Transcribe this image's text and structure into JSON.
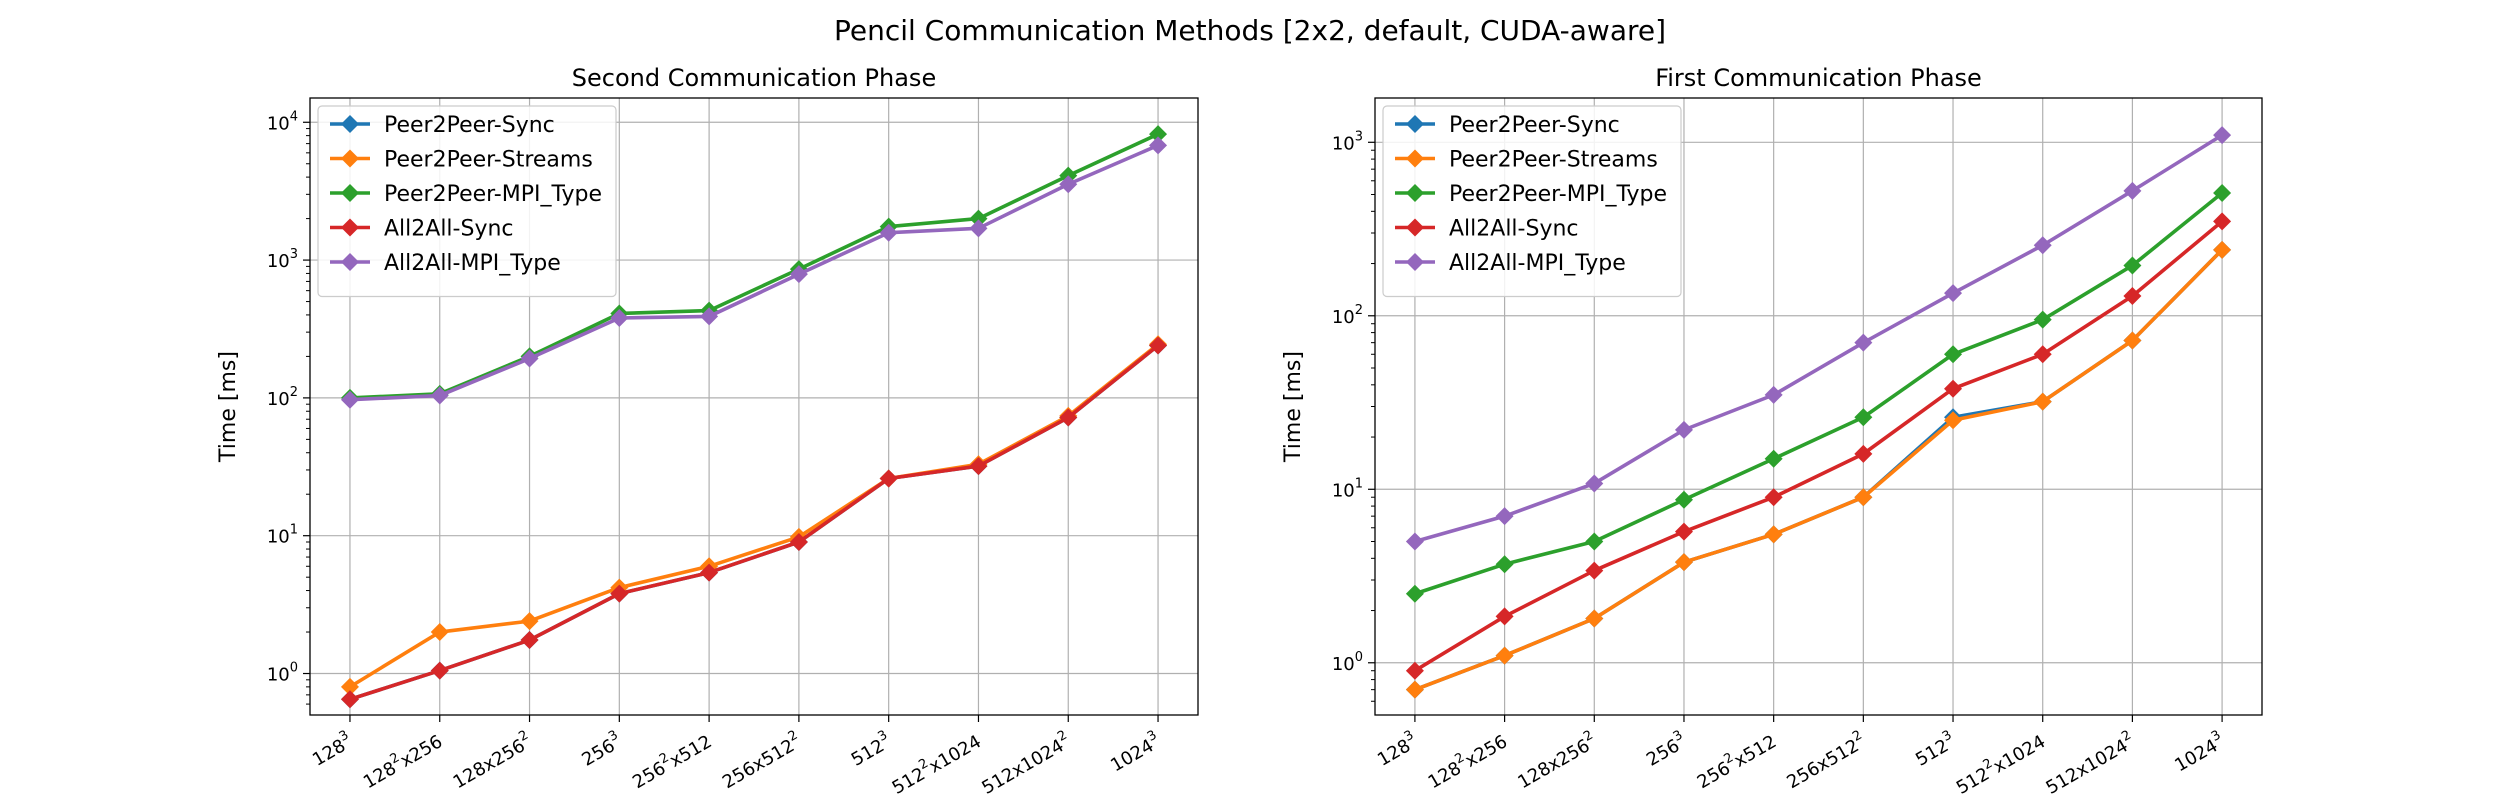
{
  "figure_title": "Pencil Communication Methods [2x2, default, CUDA-aware]",
  "colors": {
    "Peer2Peer-Sync": "#1f77b4",
    "Peer2Peer-Streams": "#ff7f0e",
    "Peer2Peer-MPI_Type": "#2ca02c",
    "All2All-Sync": "#d62728",
    "All2All-MPI_Type": "#9467bd"
  },
  "chart_data": [
    {
      "type": "line",
      "title": "Second Communication Phase",
      "xlabel": "",
      "ylabel": "Time [ms]",
      "yscale": "log",
      "ylim": [
        0.5,
        15000
      ],
      "y_ticks": [
        1,
        10,
        100,
        1000,
        10000
      ],
      "y_tick_labels": [
        {
          "base": "10",
          "exp": "0"
        },
        {
          "base": "10",
          "exp": "1"
        },
        {
          "base": "10",
          "exp": "2"
        },
        {
          "base": "10",
          "exp": "3"
        },
        {
          "base": "10",
          "exp": "4"
        }
      ],
      "grid": true,
      "legend_position": "top-left",
      "categories": [
        {
          "base": "128",
          "exp": "3",
          "tail": ""
        },
        {
          "base": "128",
          "exp": "2",
          "tail": "x256"
        },
        {
          "base": "128x256",
          "exp": "2",
          "tail": ""
        },
        {
          "base": "256",
          "exp": "3",
          "tail": ""
        },
        {
          "base": "256",
          "exp": "2",
          "tail": "x512"
        },
        {
          "base": "256x512",
          "exp": "2",
          "tail": ""
        },
        {
          "base": "512",
          "exp": "3",
          "tail": ""
        },
        {
          "base": "512",
          "exp": "2",
          "tail": "x1024"
        },
        {
          "base": "512x1024",
          "exp": "2",
          "tail": ""
        },
        {
          "base": "1024",
          "exp": "3",
          "tail": ""
        }
      ],
      "series": [
        {
          "name": "Peer2Peer-Sync",
          "values": [
            0.65,
            1.05,
            1.75,
            3.8,
            5.4,
            9.0,
            26,
            32,
            72,
            240
          ]
        },
        {
          "name": "Peer2Peer-Streams",
          "values": [
            0.8,
            2.0,
            2.4,
            4.2,
            6.0,
            9.8,
            26,
            33,
            74,
            245
          ]
        },
        {
          "name": "Peer2Peer-MPI_Type",
          "values": [
            100,
            107,
            200,
            410,
            430,
            860,
            1750,
            2000,
            4100,
            8200
          ]
        },
        {
          "name": "All2All-Sync",
          "values": [
            0.65,
            1.05,
            1.75,
            3.8,
            5.4,
            9.0,
            26,
            32,
            72,
            240
          ]
        },
        {
          "name": "All2All-MPI_Type",
          "values": [
            97,
            104,
            193,
            380,
            390,
            790,
            1580,
            1700,
            3550,
            6800
          ]
        }
      ]
    },
    {
      "type": "line",
      "title": "First Communication Phase",
      "xlabel": "",
      "ylabel": "Time [ms]",
      "yscale": "log",
      "ylim": [
        0.5,
        1800
      ],
      "y_ticks": [
        1,
        10,
        100,
        1000
      ],
      "y_tick_labels": [
        {
          "base": "10",
          "exp": "0"
        },
        {
          "base": "10",
          "exp": "1"
        },
        {
          "base": "10",
          "exp": "2"
        },
        {
          "base": "10",
          "exp": "3"
        }
      ],
      "grid": true,
      "legend_position": "top-left",
      "categories": [
        {
          "base": "128",
          "exp": "3",
          "tail": ""
        },
        {
          "base": "128",
          "exp": "2",
          "tail": "x256"
        },
        {
          "base": "128x256",
          "exp": "2",
          "tail": ""
        },
        {
          "base": "256",
          "exp": "3",
          "tail": ""
        },
        {
          "base": "256",
          "exp": "2",
          "tail": "x512"
        },
        {
          "base": "256x512",
          "exp": "2",
          "tail": ""
        },
        {
          "base": "512",
          "exp": "3",
          "tail": ""
        },
        {
          "base": "512",
          "exp": "2",
          "tail": "x1024"
        },
        {
          "base": "512x1024",
          "exp": "2",
          "tail": ""
        },
        {
          "base": "1024",
          "exp": "3",
          "tail": ""
        }
      ],
      "series": [
        {
          "name": "Peer2Peer-Sync",
          "values": [
            0.7,
            1.1,
            1.8,
            3.8,
            5.5,
            9.0,
            26,
            32,
            72,
            240
          ]
        },
        {
          "name": "Peer2Peer-Streams",
          "values": [
            0.7,
            1.1,
            1.8,
            3.8,
            5.5,
            9.0,
            25,
            32,
            72,
            240
          ]
        },
        {
          "name": "Peer2Peer-MPI_Type",
          "values": [
            2.5,
            3.7,
            5.0,
            8.7,
            15,
            26,
            60,
            95,
            195,
            510
          ]
        },
        {
          "name": "All2All-Sync",
          "values": [
            0.9,
            1.85,
            3.4,
            5.7,
            9.0,
            16,
            38,
            60,
            130,
            350
          ]
        },
        {
          "name": "All2All-MPI_Type",
          "values": [
            5.0,
            7.0,
            10.8,
            22,
            35,
            70,
            135,
            255,
            525,
            1100
          ]
        }
      ]
    }
  ]
}
